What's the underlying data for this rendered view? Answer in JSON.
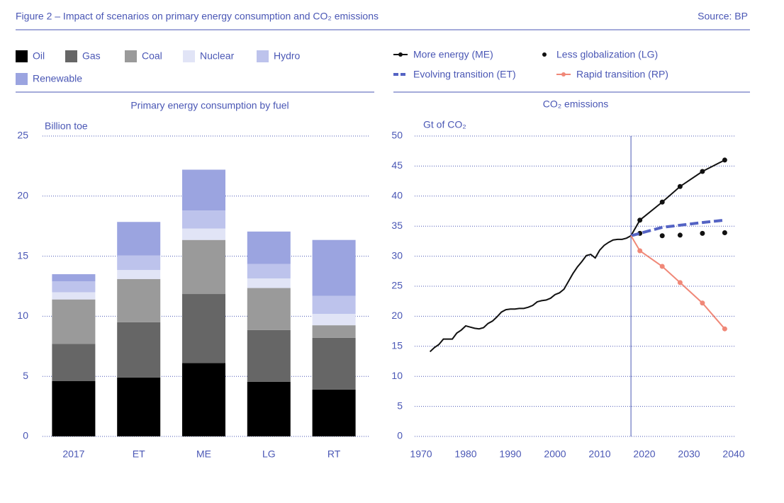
{
  "header": {
    "title": "Figure 2 – Impact of scenarios on primary energy consumption and CO₂ emissions",
    "source": "Source: BP"
  },
  "chart_data": [
    {
      "type": "stacked_bar",
      "title": "Primary energy consumption  by fuel",
      "ylabel": "Billion toe",
      "categories": [
        "2017",
        "ET",
        "ME",
        "LG",
        "RT"
      ],
      "series": [
        {
          "name": "Oil",
          "color": "#000000",
          "values": [
            4.6,
            4.9,
            6.1,
            4.55,
            3.9
          ]
        },
        {
          "name": "Gas",
          "color": "#666666",
          "values": [
            3.1,
            4.6,
            5.75,
            4.3,
            4.3
          ]
        },
        {
          "name": "Coal",
          "color": "#9a9a9a",
          "values": [
            3.7,
            3.6,
            4.5,
            3.5,
            1.05
          ]
        },
        {
          "name": "Nuclear",
          "color": "#e1e4f6",
          "values": [
            0.6,
            0.75,
            0.95,
            0.8,
            0.95
          ]
        },
        {
          "name": "Hydro",
          "color": "#bdc3ec",
          "values": [
            0.9,
            1.2,
            1.5,
            1.2,
            1.5
          ]
        },
        {
          "name": "Renewable",
          "color": "#9ba4e0",
          "values": [
            0.6,
            2.8,
            3.4,
            2.7,
            4.65
          ]
        }
      ],
      "ylim": [
        0,
        25
      ],
      "yticks": [
        0,
        5,
        10,
        15,
        20,
        25
      ],
      "grid": true
    },
    {
      "type": "line",
      "title": "CO₂ emissions",
      "ylabel": "Gt of CO₂",
      "xlim": [
        1970,
        2040
      ],
      "xticks": [
        1970,
        1980,
        1990,
        2000,
        2010,
        2020,
        2030,
        2040
      ],
      "ylim": [
        0,
        50
      ],
      "yticks": [
        0,
        5,
        10,
        15,
        20,
        25,
        30,
        35,
        40,
        45,
        50
      ],
      "grid": true,
      "vline": 2017,
      "series": [
        {
          "color": "#111111",
          "style": "line",
          "x": [
            1972,
            1973,
            1974,
            1975,
            1976,
            1977,
            1978,
            1979,
            1980,
            1981,
            1982,
            1983,
            1984,
            1985,
            1986,
            1987,
            1988,
            1989,
            1990,
            1991,
            1992,
            1993,
            1994,
            1995,
            1996,
            1997,
            1998,
            1999,
            2000,
            2001,
            2002,
            2003,
            2004,
            2005,
            2006,
            2007,
            2008,
            2009,
            2010,
            2011,
            2012,
            2013,
            2014,
            2015,
            2016,
            2017
          ],
          "values": [
            14.1,
            14.8,
            15.3,
            16.2,
            16.2,
            16.2,
            17.2,
            17.7,
            18.4,
            18.2,
            18.0,
            17.9,
            18.1,
            18.8,
            19.2,
            19.9,
            20.7,
            21.1,
            21.2,
            21.2,
            21.3,
            21.3,
            21.5,
            21.8,
            22.4,
            22.6,
            22.7,
            23.0,
            23.6,
            23.9,
            24.5,
            25.8,
            27.1,
            28.2,
            29.1,
            30.1,
            30.3,
            29.7,
            31.0,
            31.8,
            32.3,
            32.7,
            32.8,
            32.8,
            33.0,
            33.4
          ]
        },
        {
          "name": "More energy (ME)",
          "color": "#111111",
          "style": "line-marker",
          "x": [
            2017,
            2019,
            2024,
            2028,
            2033,
            2038
          ],
          "values": [
            33.4,
            36.0,
            39.0,
            41.6,
            44.1,
            46.0
          ]
        },
        {
          "name": "Less globalization (LG)",
          "color": "#111111",
          "style": "markers",
          "x": [
            2019,
            2024,
            2028,
            2033,
            2038
          ],
          "values": [
            33.8,
            33.4,
            33.5,
            33.8,
            33.9
          ]
        },
        {
          "name": "Evolving transition (ET)",
          "color": "#5463c4",
          "style": "dashed",
          "x": [
            2017,
            2024,
            2033,
            2038
          ],
          "values": [
            33.4,
            34.8,
            35.6,
            36.0
          ]
        },
        {
          "name": "Rapid transition (RP)",
          "color": "#f08878",
          "style": "line-marker",
          "x": [
            2017,
            2019,
            2024,
            2028,
            2033,
            2038
          ],
          "values": [
            33.4,
            30.9,
            28.3,
            25.6,
            22.2,
            17.9
          ]
        }
      ]
    }
  ]
}
